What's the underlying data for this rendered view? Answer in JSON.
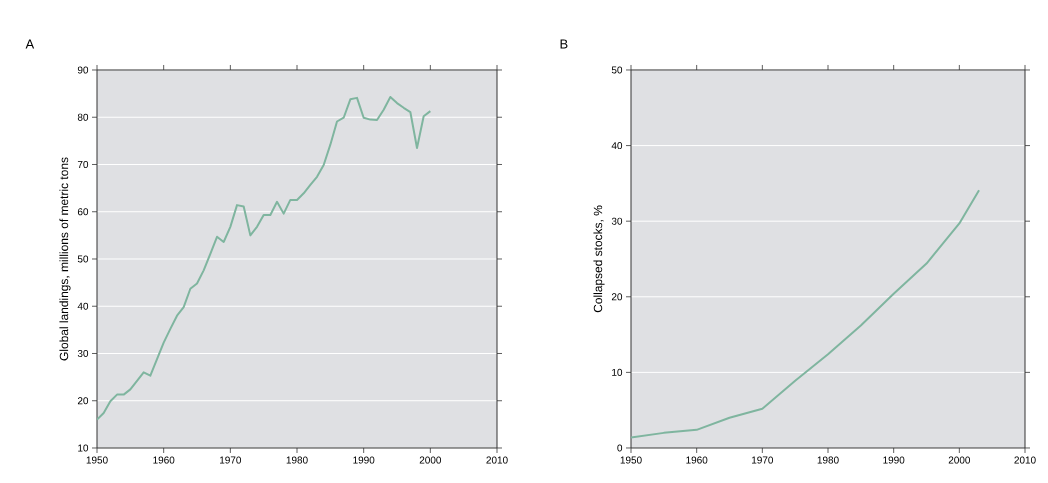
{
  "chart_data": [
    {
      "type": "line",
      "title": "A",
      "ylabel": "Global landings, millions of metric tons",
      "x": [
        1950,
        1951,
        1952,
        1953,
        1954,
        1955,
        1956,
        1957,
        1958,
        1959,
        1960,
        1961,
        1962,
        1963,
        1964,
        1965,
        1966,
        1967,
        1968,
        1969,
        1970,
        1971,
        1972,
        1973,
        1974,
        1975,
        1976,
        1977,
        1978,
        1979,
        1980,
        1981,
        1982,
        1983,
        1984,
        1985,
        1986,
        1987,
        1988,
        1989,
        1990,
        1991,
        1992,
        1993,
        1994,
        1995,
        1996,
        1997,
        1998,
        1999,
        2000
      ],
      "series": [
        {
          "color": "#7fb59f",
          "values": [
            16.0,
            17.4,
            19.9,
            21.3,
            21.3,
            22.4,
            24.2,
            26.0,
            25.3,
            28.8,
            32.3,
            35.2,
            38.0,
            39.8,
            43.7,
            44.8,
            47.6,
            51.1,
            54.7,
            53.6,
            56.8,
            61.4,
            61.1,
            55.0,
            56.8,
            59.3,
            59.3,
            62.1,
            59.6,
            62.5,
            62.5,
            63.9,
            65.7,
            67.4,
            69.9,
            74.2,
            79.1,
            79.9,
            83.8,
            84.1,
            79.9,
            79.5,
            79.4,
            81.6,
            84.3,
            83.0,
            82.0,
            81.1,
            73.5,
            80.2,
            81.3
          ]
        }
      ],
      "xlim": [
        1950,
        2010
      ],
      "ylim": [
        10,
        90
      ],
      "xticks": [
        1950,
        1960,
        1970,
        1980,
        1990,
        2000,
        2010
      ],
      "yticks": [
        10,
        20,
        30,
        40,
        50,
        60,
        70,
        80,
        90
      ],
      "grid": "y"
    },
    {
      "type": "line",
      "title": "B",
      "ylabel": "Collapsed stocks, %",
      "x": [
        1950,
        1955,
        1960,
        1965,
        1970,
        1975,
        1980,
        1985,
        1990,
        1995,
        2000,
        2003
      ],
      "series": [
        {
          "color": "#7fb59f",
          "values": [
            1.4,
            2.0,
            2.4,
            4.0,
            5.2,
            8.9,
            12.4,
            16.2,
            20.4,
            24.4,
            29.7,
            34.1
          ]
        }
      ],
      "xlim": [
        1950,
        2010
      ],
      "ylim": [
        0,
        50
      ],
      "xticks": [
        1950,
        1960,
        1970,
        1980,
        1990,
        2000,
        2010
      ],
      "yticks": [
        0,
        10,
        20,
        30,
        40,
        50
      ],
      "grid": "y"
    }
  ]
}
